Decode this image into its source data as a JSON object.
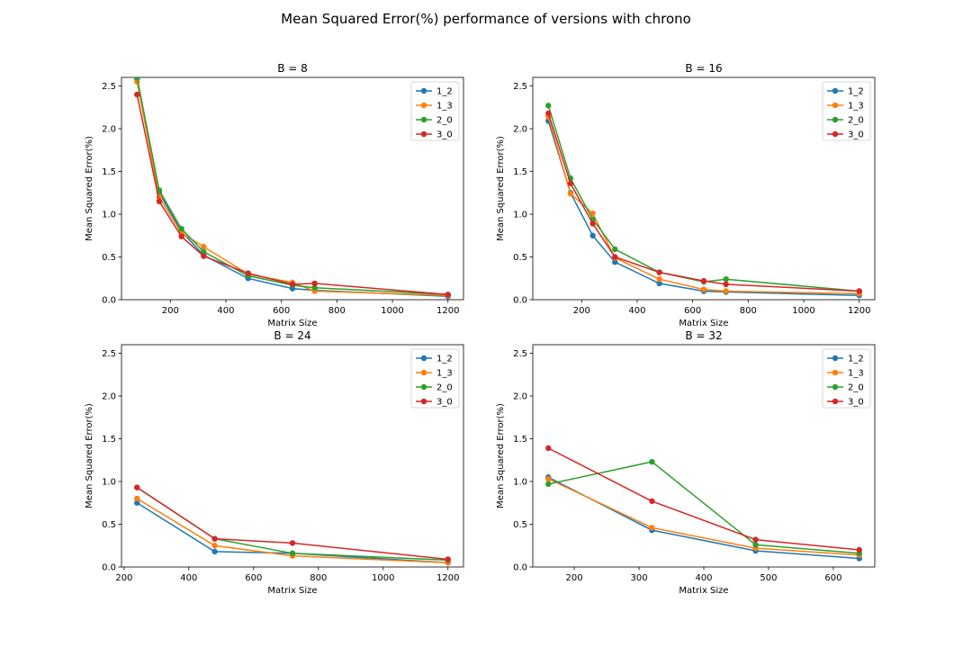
{
  "figure": {
    "title": "Mean Squared Error(%) performance of versions with chrono"
  },
  "colors": {
    "1_2": "#1f77b4",
    "1_3": "#ff7f0e",
    "2_0": "#2ca02c",
    "3_0": "#d62728"
  },
  "chart_data": [
    {
      "type": "line",
      "title": "B = 8",
      "xlabel": "Matrix Size",
      "ylabel": "Mean Squared Error(%)",
      "xlim": [
        24,
        1256
      ],
      "ylim": [
        0,
        2.6
      ],
      "xticks": [
        200,
        400,
        600,
        800,
        1000,
        1200
      ],
      "yticks": [
        0.0,
        0.5,
        1.0,
        1.5,
        2.0,
        2.5
      ],
      "xtick_labels": [
        "200",
        "400",
        "600",
        "800",
        "1000",
        "1200"
      ],
      "ytick_labels": [
        "0.0",
        "0.5",
        "1.0",
        "1.5",
        "2.0",
        "2.5"
      ],
      "legend": "top-right",
      "x": [
        80,
        160,
        240,
        320,
        480,
        640,
        720,
        1200
      ],
      "series": [
        {
          "name": "1_2",
          "values": [
            2.58,
            1.25,
            0.8,
            0.52,
            0.25,
            0.13,
            0.11,
            0.04
          ]
        },
        {
          "name": "1_3",
          "values": [
            2.55,
            1.2,
            0.78,
            0.62,
            0.3,
            0.2,
            0.1,
            0.05
          ]
        },
        {
          "name": "2_0",
          "values": [
            2.6,
            1.28,
            0.83,
            0.56,
            0.28,
            0.17,
            0.14,
            0.06
          ]
        },
        {
          "name": "3_0",
          "values": [
            2.4,
            1.15,
            0.74,
            0.51,
            0.31,
            0.18,
            0.19,
            0.06
          ]
        }
      ]
    },
    {
      "type": "line",
      "title": "B = 16",
      "xlabel": "Matrix Size",
      "ylabel": "Mean Squared Error(%)",
      "xlim": [
        24,
        1256
      ],
      "ylim": [
        0,
        2.6
      ],
      "xticks": [
        200,
        400,
        600,
        800,
        1000,
        1200
      ],
      "yticks": [
        0.0,
        0.5,
        1.0,
        1.5,
        2.0,
        2.5
      ],
      "xtick_labels": [
        "200",
        "400",
        "600",
        "800",
        "1000",
        "1200"
      ],
      "ytick_labels": [
        "0.0",
        "0.5",
        "1.0",
        "1.5",
        "2.0",
        "2.5"
      ],
      "legend": "top-right",
      "x": [
        80,
        160,
        240,
        320,
        480,
        640,
        720,
        1200
      ],
      "series": [
        {
          "name": "1_2",
          "values": [
            2.09,
            1.25,
            0.75,
            0.44,
            0.19,
            0.1,
            0.09,
            0.05
          ]
        },
        {
          "name": "1_3",
          "values": [
            2.14,
            1.24,
            1.01,
            0.49,
            0.24,
            0.12,
            0.1,
            0.07
          ]
        },
        {
          "name": "2_0",
          "values": [
            2.27,
            1.42,
            0.94,
            0.59,
            0.32,
            0.21,
            0.24,
            0.1
          ]
        },
        {
          "name": "3_0",
          "values": [
            2.18,
            1.36,
            0.89,
            0.5,
            0.32,
            0.22,
            0.18,
            0.1
          ]
        }
      ]
    },
    {
      "type": "line",
      "title": "B = 24",
      "xlabel": "Matrix Size",
      "ylabel": "Mean Squared Error(%)",
      "xlim": [
        192,
        1248
      ],
      "ylim": [
        0,
        2.6
      ],
      "xticks": [
        200,
        400,
        600,
        800,
        1000,
        1200
      ],
      "yticks": [
        0.0,
        0.5,
        1.0,
        1.5,
        2.0,
        2.5
      ],
      "xtick_labels": [
        "200",
        "400",
        "600",
        "800",
        "1000",
        "1200"
      ],
      "ytick_labels": [
        "0.0",
        "0.5",
        "1.0",
        "1.5",
        "2.0",
        "2.5"
      ],
      "legend": "top-right",
      "x": [
        240,
        480,
        720,
        1200
      ],
      "series": [
        {
          "name": "1_2",
          "values": [
            0.75,
            0.18,
            0.16,
            0.05
          ]
        },
        {
          "name": "1_3",
          "values": [
            0.8,
            0.25,
            0.13,
            0.05
          ]
        },
        {
          "name": "2_0",
          "values": [
            0.93,
            0.33,
            0.16,
            0.08
          ]
        },
        {
          "name": "3_0",
          "values": [
            0.93,
            0.33,
            0.28,
            0.09
          ]
        }
      ]
    },
    {
      "type": "line",
      "title": "B = 32",
      "xlabel": "Matrix Size",
      "ylabel": "Mean Squared Error(%)",
      "xlim": [
        136,
        664
      ],
      "ylim": [
        0,
        2.6
      ],
      "xticks": [
        200,
        300,
        400,
        500,
        600
      ],
      "yticks": [
        0.0,
        0.5,
        1.0,
        1.5,
        2.0,
        2.5
      ],
      "xtick_labels": [
        "200",
        "300",
        "400",
        "500",
        "600"
      ],
      "ytick_labels": [
        "0.0",
        "0.5",
        "1.0",
        "1.5",
        "2.0",
        "2.5"
      ],
      "legend": "top-right",
      "x": [
        160,
        320,
        480,
        640
      ],
      "series": [
        {
          "name": "1_2",
          "values": [
            1.05,
            0.43,
            0.19,
            0.1
          ]
        },
        {
          "name": "1_3",
          "values": [
            1.03,
            0.46,
            0.22,
            0.14
          ]
        },
        {
          "name": "2_0",
          "values": [
            0.97,
            1.23,
            0.26,
            0.16
          ]
        },
        {
          "name": "3_0",
          "values": [
            1.39,
            0.77,
            0.32,
            0.2
          ]
        }
      ]
    }
  ]
}
